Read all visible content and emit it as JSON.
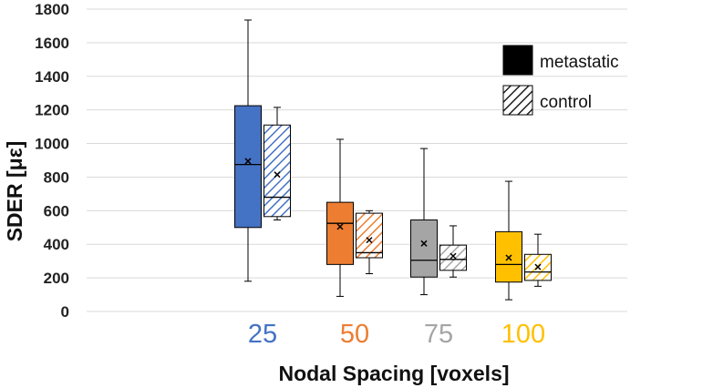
{
  "chart_data": {
    "type": "boxplot",
    "xlabel": "Nodal Spacing [voxels]",
    "ylabel": "SDER [με]",
    "ylim": [
      0,
      1800
    ],
    "yticks": [
      0,
      200,
      400,
      600,
      800,
      1000,
      1200,
      1400,
      1600,
      1800
    ],
    "grid": true,
    "legend": {
      "position": "top-right",
      "entries": [
        {
          "label": "metastatic",
          "pattern": "solid"
        },
        {
          "label": "control",
          "pattern": "hatched"
        }
      ]
    },
    "categories": [
      {
        "label": "25",
        "color": "#4472C4",
        "metastatic": {
          "min": 180,
          "q1": 500,
          "median": 875,
          "q3": 1225,
          "max": 1735,
          "mean": 895
        },
        "control": {
          "min": 545,
          "q1": 565,
          "median": 680,
          "q3": 1110,
          "max": 1215,
          "mean": 815
        }
      },
      {
        "label": "50",
        "color": "#ED7D31",
        "metastatic": {
          "min": 90,
          "q1": 280,
          "median": 525,
          "q3": 650,
          "max": 1025,
          "mean": 505
        },
        "control": {
          "min": 225,
          "q1": 320,
          "median": 350,
          "q3": 585,
          "max": 600,
          "mean": 425
        }
      },
      {
        "label": "75",
        "color": "#A5A5A5",
        "metastatic": {
          "min": 100,
          "q1": 205,
          "median": 305,
          "q3": 545,
          "max": 970,
          "mean": 405
        },
        "control": {
          "min": 205,
          "q1": 245,
          "median": 310,
          "q3": 395,
          "max": 510,
          "mean": 330
        }
      },
      {
        "label": "100",
        "color": "#FFC000",
        "metastatic": {
          "min": 70,
          "q1": 175,
          "median": 280,
          "q3": 475,
          "max": 775,
          "mean": 320
        },
        "control": {
          "min": 150,
          "q1": 185,
          "median": 235,
          "q3": 340,
          "max": 460,
          "mean": 265
        }
      }
    ]
  }
}
